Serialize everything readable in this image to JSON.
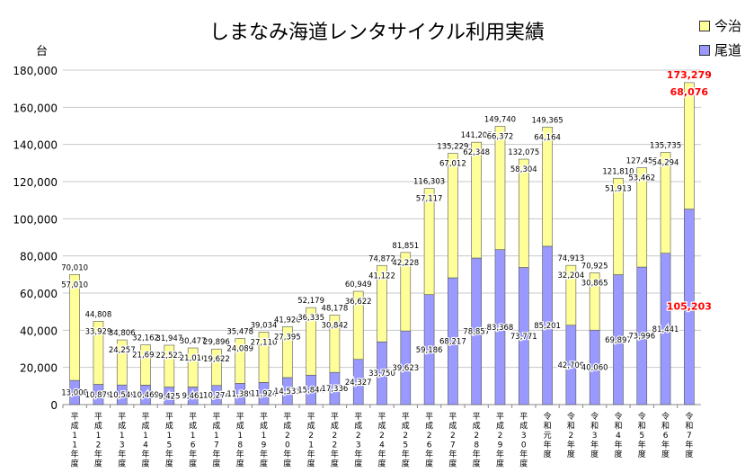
{
  "chart_data": {
    "type": "bar",
    "stacked": true,
    "title": "しまなみ海道レンタサイクル利用実績",
    "ylabel": "台",
    "ylim": [
      0,
      180000
    ],
    "yticks": [
      "0",
      "20,000",
      "40,000",
      "60,000",
      "80,000",
      "100,000",
      "120,000",
      "140,000",
      "160,000",
      "180,000"
    ],
    "grid": true,
    "legend_position": "top-right",
    "categories": [
      "平成11年度",
      "平成12年度",
      "平成13年度",
      "平成14年度",
      "平成15年度",
      "平成16年度",
      "平成17年度",
      "平成18年度",
      "平成19年度",
      "平成20年度",
      "平成21年度",
      "平成22年度",
      "平成23年度",
      "平成24年度",
      "平成25年度",
      "平成26年度",
      "平成27年度",
      "平成28年度",
      "平成29年度",
      "平成30年度",
      "令和元年度",
      "令和2年度",
      "令和3年度",
      "令和4年度",
      "令和5年度",
      "令和6年度",
      "令和7年度"
    ],
    "series": [
      {
        "name": "尾道",
        "color": "#9999ff",
        "values": [
          13000,
          10879,
          10549,
          10469,
          9425,
          9461,
          10274,
          11389,
          11924,
          14531,
          15844,
          17336,
          24327,
          33750,
          39623,
          59186,
          68217,
          78857,
          83368,
          73771,
          85201,
          42709,
          40060,
          69897,
          73996,
          81441,
          105203
        ]
      },
      {
        "name": "今治",
        "color": "#ffff99",
        "values": [
          57010,
          33929,
          24257,
          21693,
          22522,
          21016,
          19622,
          24089,
          27110,
          27395,
          36335,
          30842,
          36622,
          41122,
          42228,
          57117,
          67012,
          62348,
          66372,
          58304,
          64164,
          32204,
          30865,
          51913,
          53462,
          54294,
          68076
        ]
      }
    ],
    "totals": [
      70010,
      44808,
      34806,
      32162,
      31947,
      30477,
      29896,
      35478,
      39034,
      41926,
      52179,
      48178,
      60949,
      74872,
      81851,
      116303,
      135229,
      141205,
      149740,
      132075,
      149365,
      74913,
      70925,
      121810,
      127458,
      135735,
      173279
    ],
    "highlight_color": "#ff0000"
  }
}
